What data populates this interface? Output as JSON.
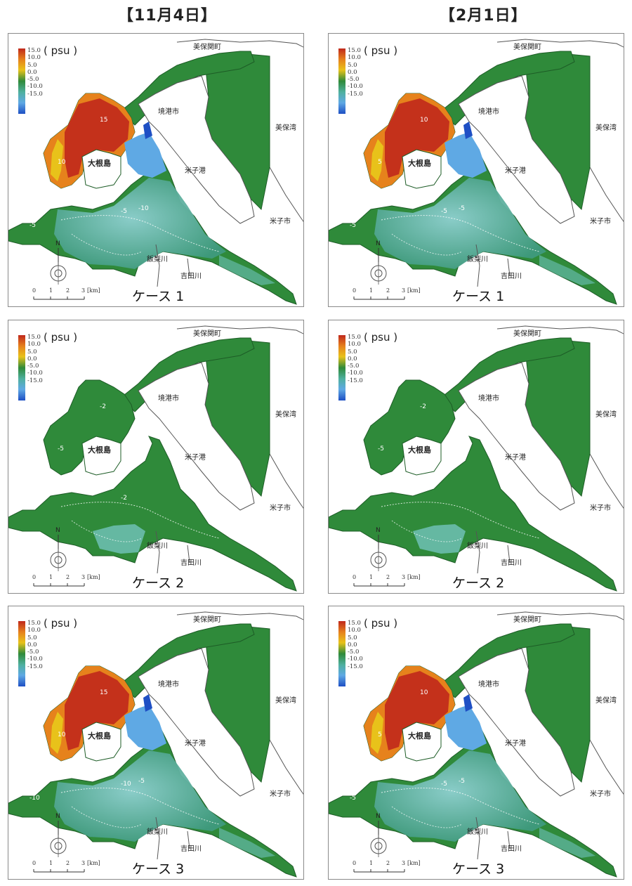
{
  "columns": [
    {
      "title": "【11月4日】"
    },
    {
      "title": "【2月1日】"
    }
  ],
  "legend": {
    "unit": "( psu )",
    "ticks": [
      "15.0",
      "10.0",
      "5.0",
      "0.0",
      "-5.0",
      "-10.0",
      "-15.0"
    ]
  },
  "place_labels": {
    "mihonoseki": "美保関町",
    "sakaiminato": "境港市",
    "mihowan": "美保湾",
    "yonagokou": "米子港",
    "yonagoshi": "米子市",
    "daikonjima": "大根島",
    "iinashigawa": "飯梨川",
    "yoshidagawa": "吉田川"
  },
  "scale": {
    "north": "N",
    "unit": "[km]",
    "ticks": [
      "0",
      "1",
      "2",
      "3"
    ]
  },
  "panels": [
    {
      "case": "ケース 1",
      "scenario": "upper-high",
      "contours": [
        "15",
        "10",
        "-5",
        "-10",
        "-5",
        "-5"
      ]
    },
    {
      "case": "ケース 1",
      "scenario": "upper-high",
      "contours": [
        "10",
        "5",
        "-5",
        "-5",
        "-5"
      ]
    },
    {
      "case": "ケース 2",
      "scenario": "flat",
      "contours": [
        "-2",
        "-5",
        "-2"
      ]
    },
    {
      "case": "ケース 2",
      "scenario": "flat",
      "contours": [
        "-2",
        "-5"
      ]
    },
    {
      "case": "ケース 3",
      "scenario": "upper-high",
      "contours": [
        "15",
        "10",
        "-10",
        "-5",
        "-10",
        "-5"
      ]
    },
    {
      "case": "ケース 3",
      "scenario": "upper-high",
      "contours": [
        "10",
        "5",
        "-5",
        "-5",
        "-5"
      ]
    }
  ],
  "colors": {
    "land_fill": "#ffffff",
    "coast": "#555555",
    "base_green": "#2f8a3a",
    "dark_green": "#1f6b2a",
    "red": "#c0281c",
    "orange": "#e6821c",
    "yellow": "#e8c21a",
    "light_cyan": "#8fd0d0",
    "blue": "#5fa9e4",
    "deep_blue": "#1e4fc4"
  }
}
